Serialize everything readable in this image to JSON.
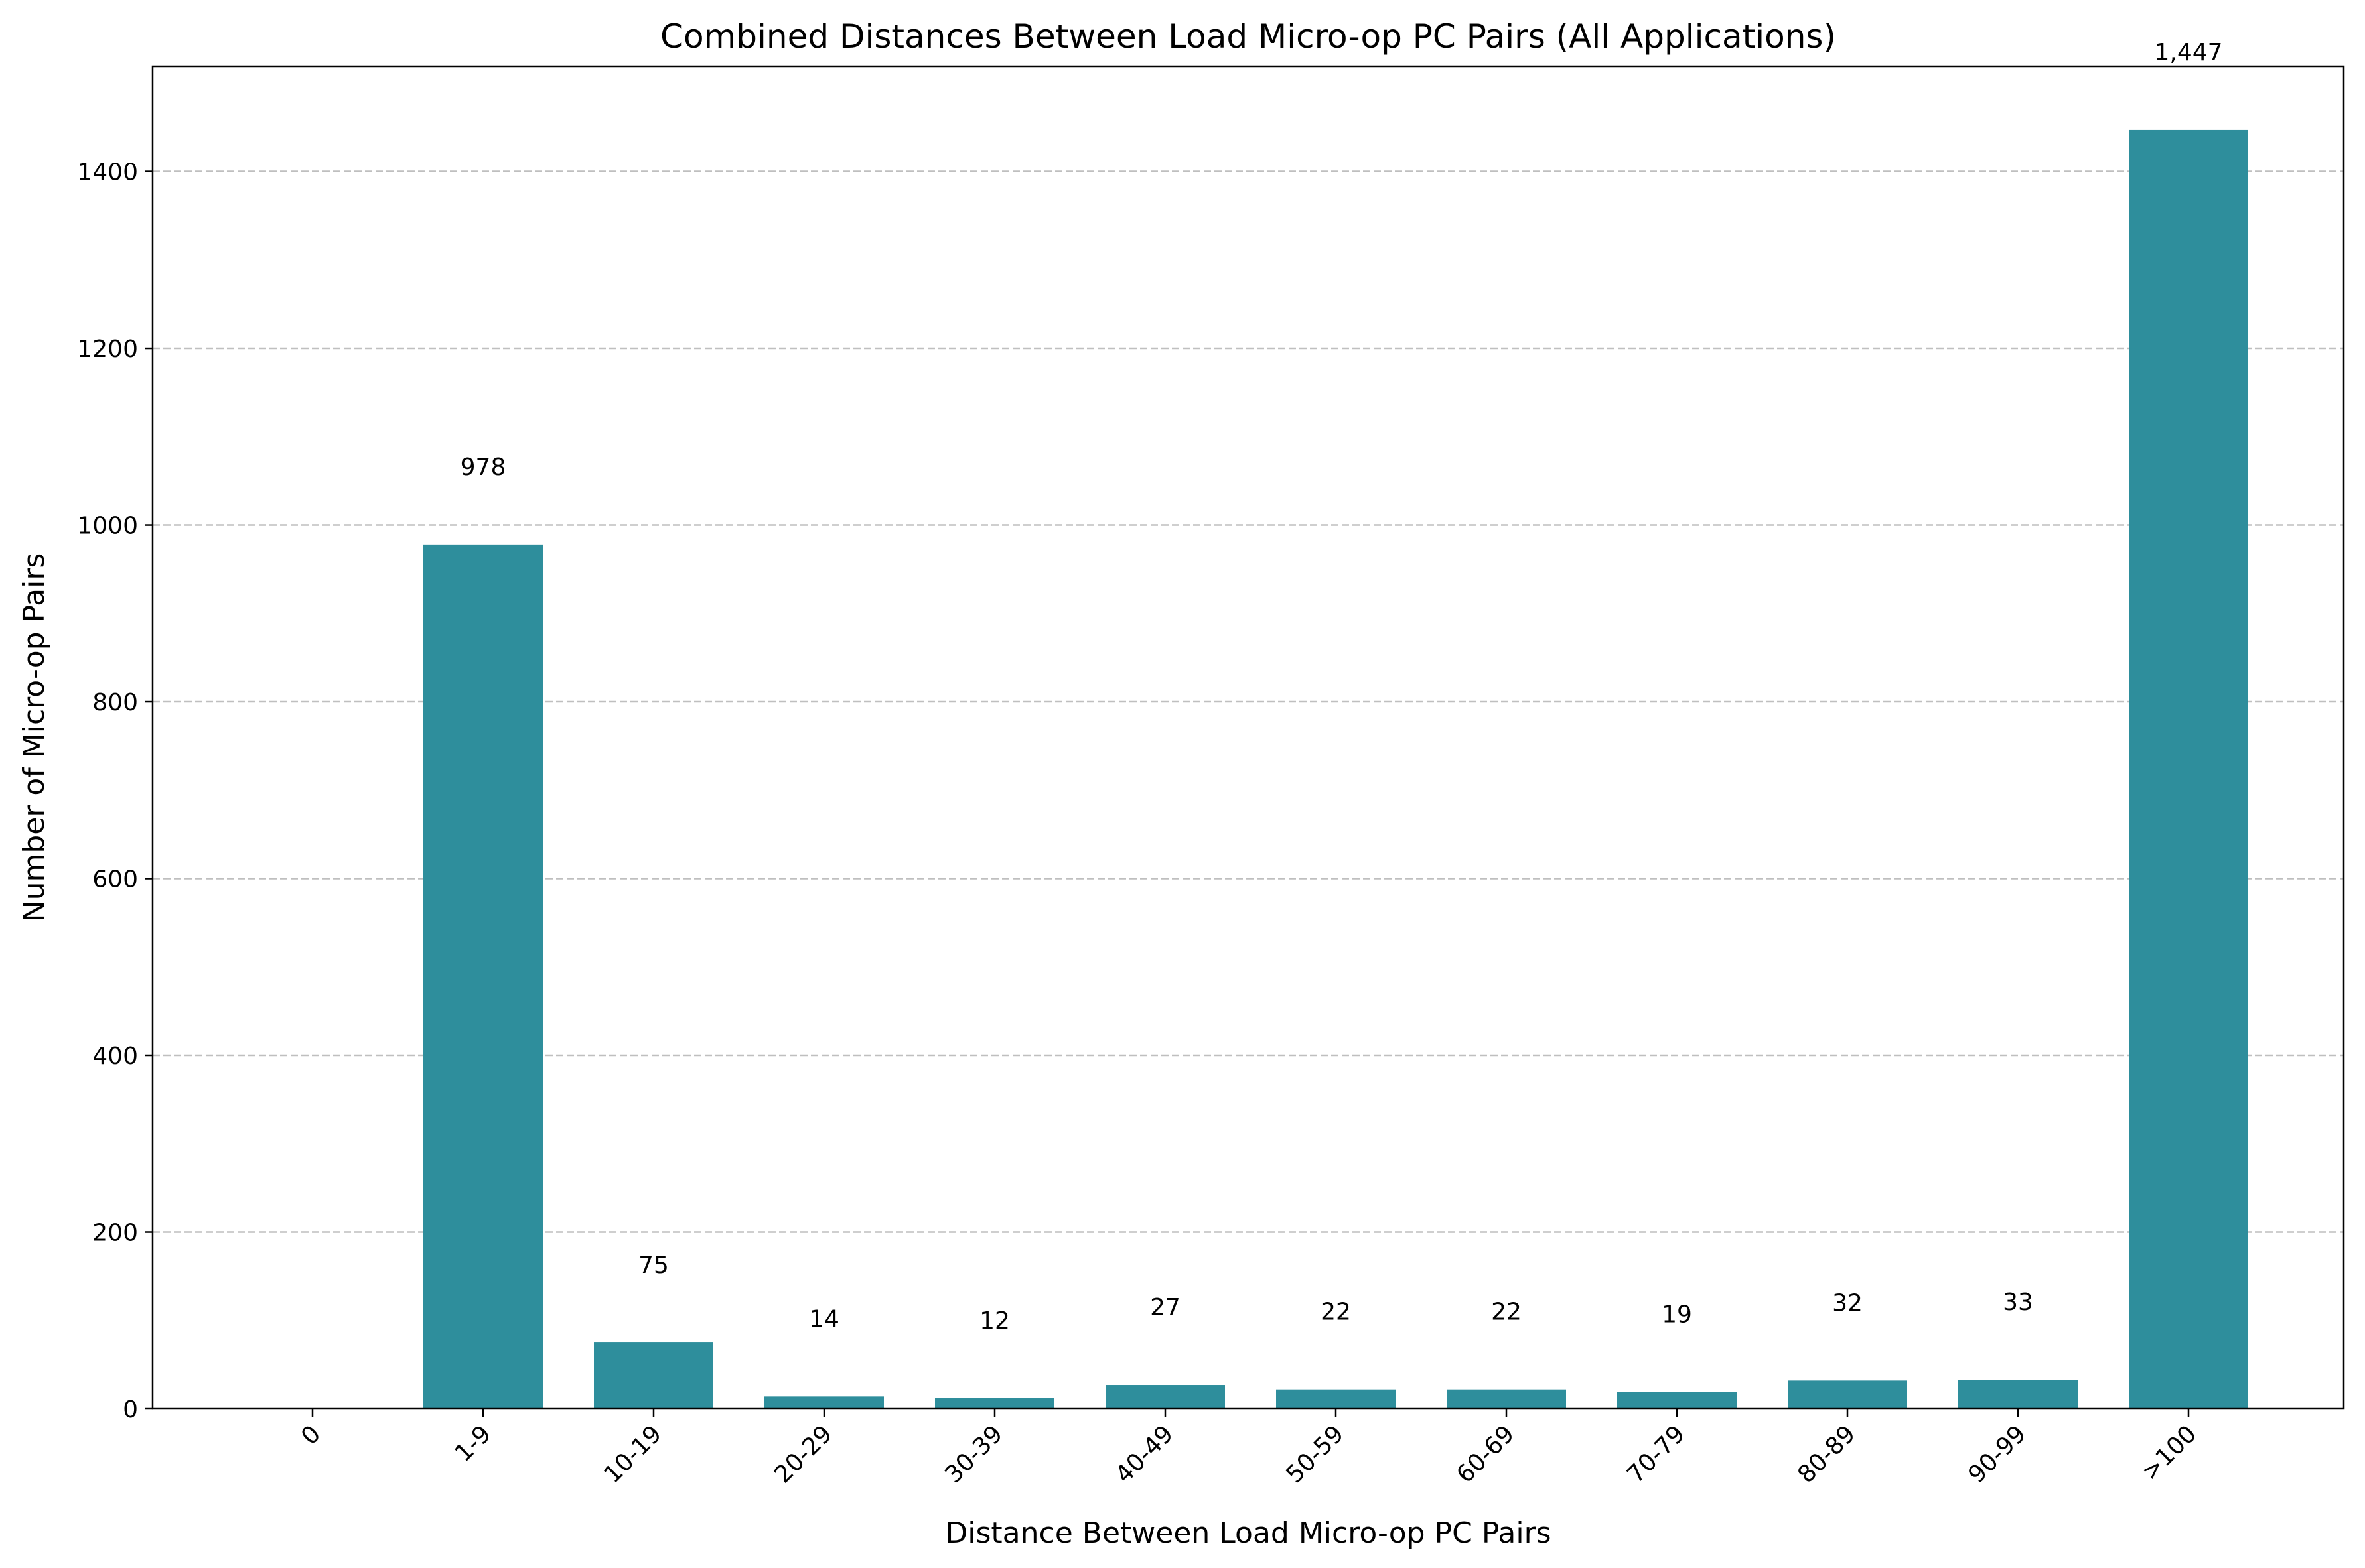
{
  "chart_data": {
    "type": "bar",
    "title": "Combined Distances Between Load Micro-op PC Pairs (All Applications)",
    "xlabel": "Distance Between Load Micro-op PC Pairs",
    "ylabel": "Number of Micro-op Pairs",
    "categories": [
      "0",
      "1-9",
      "10-19",
      "20-29",
      "30-39",
      "40-49",
      "50-59",
      "60-69",
      "70-79",
      "80-89",
      "90-99",
      ">100"
    ],
    "values": [
      0,
      978,
      75,
      14,
      12,
      27,
      22,
      22,
      19,
      32,
      33,
      1447
    ],
    "data_labels": [
      "",
      "978",
      "75",
      "14",
      "12",
      "27",
      "22",
      "22",
      "19",
      "32",
      "33",
      "1,447"
    ],
    "yticks": [
      0,
      200,
      400,
      600,
      800,
      1000,
      1200,
      1400
    ],
    "ylim": [
      0,
      1519
    ],
    "grid": "y-dashed",
    "bar_color": "#2e8e9c",
    "grid_color": "#bfbfbf"
  }
}
